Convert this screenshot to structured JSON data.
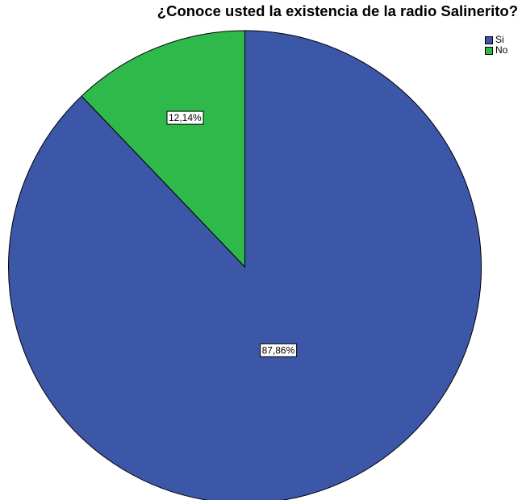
{
  "chart_data": {
    "type": "pie",
    "title": "¿Conoce usted la existencia de la radio Salinerito?",
    "categories": [
      "Si",
      "No"
    ],
    "values": [
      87.86,
      12.14
    ],
    "data_labels": [
      "87,86%",
      "12,14%"
    ],
    "colors": [
      "#3C56A8",
      "#2EB94A"
    ],
    "legend_position": "top-right",
    "start_angle": "12 o'clock",
    "direction": "clockwise"
  }
}
